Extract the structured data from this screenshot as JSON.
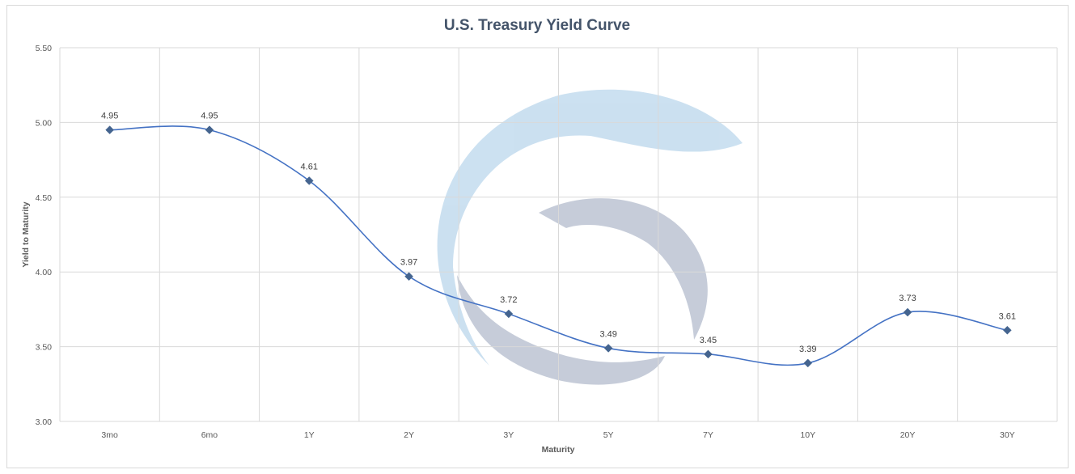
{
  "chart_data": {
    "type": "line",
    "title": "U.S. Treasury Yield Curve",
    "xlabel": "Maturity",
    "ylabel": "Yield to Maturity",
    "categories": [
      "3mo",
      "6mo",
      "1Y",
      "2Y",
      "3Y",
      "5Y",
      "7Y",
      "10Y",
      "20Y",
      "30Y"
    ],
    "series": [
      {
        "values": [
          4.95,
          4.95,
          4.61,
          3.97,
          3.72,
          3.49,
          3.45,
          3.39,
          3.73,
          3.61
        ],
        "labels": [
          "4.95",
          "4.95",
          "4.61",
          "3.97",
          "3.72",
          "3.49",
          "3.45",
          "3.39",
          "3.73",
          "3.61"
        ]
      }
    ],
    "ylim": [
      3.0,
      5.5
    ],
    "yticks": [
      "3.00",
      "3.50",
      "4.00",
      "4.50",
      "5.00",
      "5.50"
    ],
    "smooth": true,
    "marker": "diamond",
    "grid": true,
    "legend": "none",
    "colors": {
      "line": "#4472c4",
      "marker": "#44648f",
      "grid": "#d9d9d9",
      "watermark_light": "#c9dff0",
      "watermark_dark": "#c3cad7"
    }
  }
}
